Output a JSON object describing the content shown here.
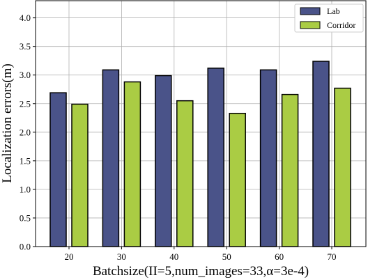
{
  "chart_data": {
    "type": "bar",
    "title": "",
    "xlabel": "Batchsize(II=5,num_images=33,α=3e-4)",
    "ylabel": "Localization errors(m)",
    "categories": [
      "20",
      "30",
      "40",
      "50",
      "60",
      "70"
    ],
    "series": [
      {
        "name": "Lab",
        "color": "#4a5389",
        "values": [
          2.69,
          3.09,
          2.99,
          3.12,
          3.09,
          3.24
        ]
      },
      {
        "name": "Corridor",
        "color": "#aacc44",
        "values": [
          2.49,
          2.88,
          2.55,
          2.33,
          2.66,
          2.77
        ]
      }
    ],
    "ylim": [
      0,
      4.3
    ],
    "yticks": [
      0.0,
      0.5,
      1.0,
      1.5,
      2.0,
      2.5,
      3.0,
      3.5,
      4.0
    ],
    "ytick_labels": [
      "0.0",
      "0.5",
      "1.0",
      "1.5",
      "2.0",
      "2.5",
      "3.0",
      "3.5",
      "4.0"
    ],
    "grid": true,
    "legend_position": "top-right"
  }
}
